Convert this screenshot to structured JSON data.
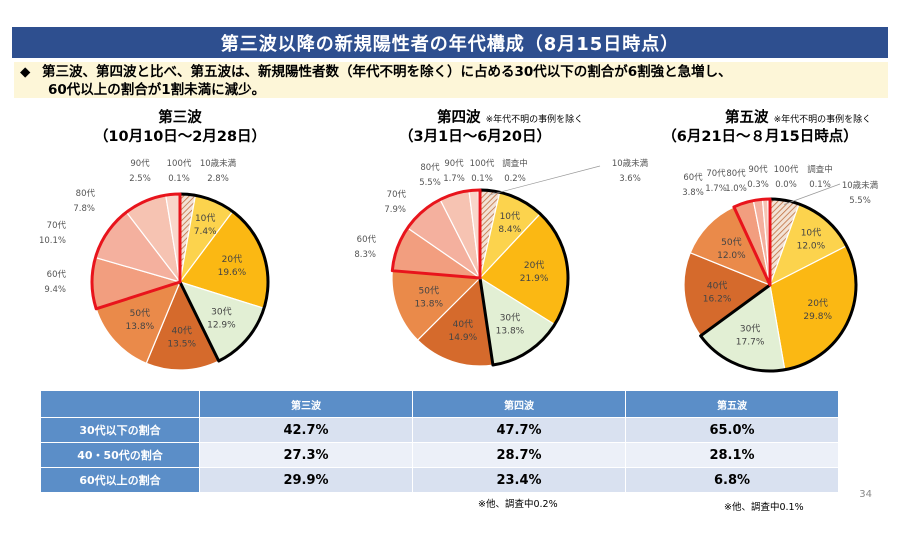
{
  "header": {
    "title": "第三波以降の新規陽性者の年代構成（8月15日時点）"
  },
  "summary": {
    "bullet": "◆",
    "line1": "第三波、第四波と比べ、第五波は、新規陽性者数（年代不明を除く）に占める30代以下の割合が6割強と急増し、",
    "line2": "60代以上の割合が1割未満に減少。"
  },
  "colors": {
    "10歳未満": "hatch",
    "10代": "#fcd34d",
    "20代": "#fbb813",
    "30代": "#e2efd4",
    "40代": "#d56a2c",
    "50代": "#ea8a4a",
    "60代": "#f29e7f",
    "70代": "#f4b09e",
    "80代": "#f6c3b2",
    "90代": "#f9d6ca",
    "100代": "#fbe4dc",
    "調査中": "#f5ebe6"
  },
  "chart_data": [
    {
      "type": "pie",
      "title": "第三波",
      "subtitle": "（10月10日～2月28日）",
      "note": "",
      "slices": [
        {
          "label": "10歳未満",
          "value": 2.8
        },
        {
          "label": "10代",
          "value": 7.4
        },
        {
          "label": "20代",
          "value": 19.6
        },
        {
          "label": "30代",
          "value": 12.9
        },
        {
          "label": "40代",
          "value": 13.5
        },
        {
          "label": "50代",
          "value": 13.8
        },
        {
          "label": "60代",
          "value": 9.4
        },
        {
          "label": "70代",
          "value": 10.1
        },
        {
          "label": "80代",
          "value": 7.8
        },
        {
          "label": "90代",
          "value": 2.5
        },
        {
          "label": "100代",
          "value": 0.1
        }
      ]
    },
    {
      "type": "pie",
      "title": "第四波",
      "subtitle": "（3月1日～6月20日）",
      "note": "※年代不明の事例を除く",
      "slices": [
        {
          "label": "10歳未満",
          "value": 3.6
        },
        {
          "label": "10代",
          "value": 8.4
        },
        {
          "label": "20代",
          "value": 21.9
        },
        {
          "label": "30代",
          "value": 13.8
        },
        {
          "label": "40代",
          "value": 14.9
        },
        {
          "label": "50代",
          "value": 13.8
        },
        {
          "label": "60代",
          "value": 8.3
        },
        {
          "label": "70代",
          "value": 7.9
        },
        {
          "label": "80代",
          "value": 5.5
        },
        {
          "label": "90代",
          "value": 1.7
        },
        {
          "label": "100代",
          "value": 0.1
        },
        {
          "label": "調査中",
          "value": 0.2
        }
      ]
    },
    {
      "type": "pie",
      "title": "第五波",
      "subtitle": "（6月21日～８月15日時点）",
      "note": "※年代不明の事例を除く",
      "slices": [
        {
          "label": "10歳未満",
          "value": 5.5
        },
        {
          "label": "10代",
          "value": 12.0
        },
        {
          "label": "20代",
          "value": 29.8
        },
        {
          "label": "30代",
          "value": 17.7
        },
        {
          "label": "40代",
          "value": 16.2
        },
        {
          "label": "50代",
          "value": 12.0
        },
        {
          "label": "60代",
          "value": 3.8
        },
        {
          "label": "70代",
          "value": 1.7
        },
        {
          "label": "80代",
          "value": 1.0
        },
        {
          "label": "90代",
          "value": 0.3
        },
        {
          "label": "100代",
          "value": 0.0
        },
        {
          "label": "調査中",
          "value": 0.1
        }
      ]
    }
  ],
  "table": {
    "headers": [
      "第三波",
      "第四波",
      "第五波"
    ],
    "rows": [
      {
        "label": "30代以下の割合",
        "values": [
          "42.7%",
          "47.7%",
          "65.0%"
        ]
      },
      {
        "label": "40・50代の割合",
        "values": [
          "27.3%",
          "28.7%",
          "28.1%"
        ]
      },
      {
        "label": "60代以上の割合",
        "values": [
          "29.9%",
          "23.4%",
          "6.8%"
        ]
      }
    ]
  },
  "footnotes": {
    "wave4": "※他、調査中0.2%",
    "wave5": "※他、調査中0.1%"
  },
  "page_number": "34"
}
